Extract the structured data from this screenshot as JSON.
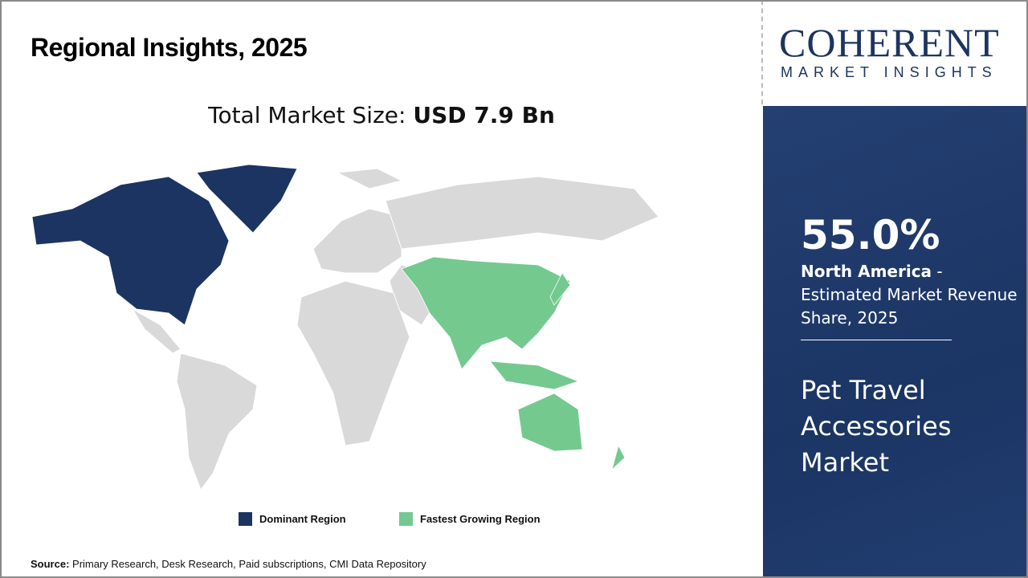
{
  "title": "Regional Insights, 2025",
  "total_label": "Total Market Size: ",
  "total_value": "USD 7.9 Bn",
  "logo": {
    "big": "COHERENT",
    "small": "MARKET INSIGHTS"
  },
  "side": {
    "percent": "55.0%",
    "region": "North America",
    "desc": " - Estimated Market Revenue Share, 2025",
    "market": "Pet Travel Accessories Market"
  },
  "legend": [
    {
      "label": "Dominant Region",
      "color": "#1b3461"
    },
    {
      "label": "Fastest Growing Region",
      "color": "#74c98f"
    }
  ],
  "source": {
    "label": "Source:",
    "text": " Primary Research, Desk Research, Paid subscriptions, CMI Data Repository"
  },
  "colors": {
    "other": "#d9d9d9"
  }
}
